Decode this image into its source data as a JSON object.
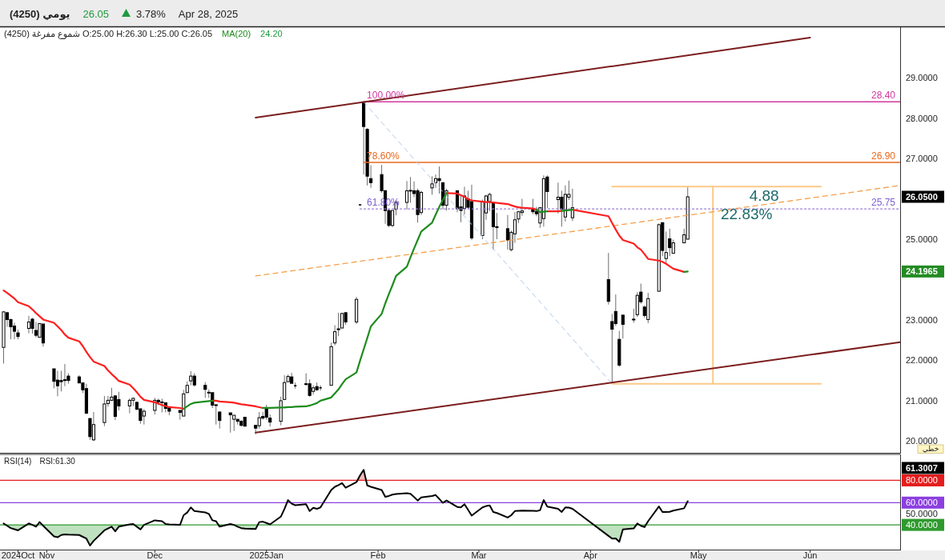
{
  "chart_data": [
    {
      "type": "candlestick",
      "title": "(4250)   يومي",
      "subtitle": "(4250)  شموع مفرغة   O:25.00   H:26.30   L:25.00   C:26.05",
      "x": [
        "2024-10-20",
        "2024-10-21",
        "2024-10-22",
        "2024-10-23",
        "2024-10-24",
        "2024-10-27",
        "2024-10-28",
        "2024-10-29",
        "2024-10-30",
        "2024-10-31",
        "2024-11-03",
        "2024-11-04",
        "2024-11-05",
        "2024-11-06",
        "2024-11-07",
        "2024-11-10",
        "2024-11-11",
        "2024-11-12",
        "2024-11-13",
        "2024-11-14",
        "2024-11-17",
        "2024-11-18",
        "2024-11-19",
        "2024-11-20",
        "2024-11-21",
        "2024-11-24",
        "2024-11-25",
        "2024-11-26",
        "2024-11-27",
        "2024-11-28",
        "2024-12-01",
        "2024-12-02",
        "2024-12-03",
        "2024-12-04",
        "2024-12-05",
        "2024-12-08",
        "2024-12-09",
        "2024-12-10",
        "2024-12-11",
        "2024-12-12",
        "2024-12-15",
        "2024-12-16",
        "2024-12-17",
        "2024-12-18",
        "2024-12-19",
        "2024-12-22",
        "2024-12-23",
        "2024-12-24",
        "2024-12-25",
        "2024-12-26",
        "2024-12-29",
        "2024-12-30",
        "2024-12-31",
        "2025-01-01",
        "2025-01-02",
        "2025-01-05",
        "2025-01-06",
        "2025-01-07",
        "2025-01-08",
        "2025-01-09",
        "2025-01-12",
        "2025-01-13",
        "2025-01-14",
        "2025-01-15",
        "2025-01-16",
        "2025-01-19",
        "2025-01-20",
        "2025-01-21",
        "2025-01-22",
        "2025-01-23",
        "2025-01-26",
        "2025-01-27",
        "2025-01-28",
        "2025-01-29",
        "2025-01-30",
        "2025-02-02",
        "2025-02-03",
        "2025-02-04",
        "2025-02-05",
        "2025-02-06",
        "2025-02-09",
        "2025-02-10",
        "2025-02-11",
        "2025-02-12",
        "2025-02-13",
        "2025-02-16",
        "2025-02-17",
        "2025-02-18",
        "2025-02-19",
        "2025-02-20",
        "2025-02-23",
        "2025-02-24",
        "2025-02-25",
        "2025-02-26",
        "2025-02-27",
        "2025-03-02",
        "2025-03-03",
        "2025-03-04",
        "2025-03-05",
        "2025-03-06",
        "2025-03-09",
        "2025-03-10",
        "2025-03-11",
        "2025-03-12",
        "2025-03-13",
        "2025-03-16",
        "2025-03-17",
        "2025-03-18",
        "2025-03-19",
        "2025-03-20",
        "2025-03-23",
        "2025-03-24",
        "2025-03-25",
        "2025-03-26",
        "2025-03-27",
        "2025-04-06",
        "2025-04-07",
        "2025-04-08",
        "2025-04-09",
        "2025-04-10",
        "2025-04-13",
        "2025-04-14",
        "2025-04-15",
        "2025-04-16",
        "2025-04-17",
        "2025-04-20",
        "2025-04-21",
        "2025-04-22",
        "2025-04-23",
        "2025-04-24",
        "2025-04-27",
        "2025-04-28"
      ],
      "ohlc": [
        [
          22.32,
          23.22,
          21.92,
          23.2
        ],
        [
          23.18,
          23.2,
          22.83,
          23.01
        ],
        [
          23.01,
          23.03,
          22.52,
          22.83
        ],
        [
          22.85,
          22.93,
          22.52,
          22.72
        ],
        [
          22.68,
          22.76,
          22.52,
          22.59
        ],
        [
          22.79,
          23.1,
          22.67,
          22.95
        ],
        [
          23.02,
          23.05,
          22.66,
          22.79
        ],
        [
          22.74,
          22.95,
          22.57,
          22.62
        ],
        [
          22.57,
          22.91,
          22.57,
          22.91
        ],
        [
          22.9,
          22.9,
          22.34,
          22.43
        ],
        [
          21.79,
          21.79,
          21.31,
          21.48
        ],
        [
          21.51,
          21.74,
          21.11,
          21.37
        ],
        [
          21.5,
          21.74,
          21.23,
          21.47
        ],
        [
          21.52,
          21.91,
          21.36,
          21.5
        ],
        [
          21.61,
          21.68,
          21.42,
          21.5
        ],
        [
          21.59,
          21.63,
          21.44,
          21.44
        ],
        [
          21.44,
          21.44,
          21.19,
          21.27
        ],
        [
          21.3,
          21.42,
          20.67,
          20.69
        ],
        [
          20.56,
          20.56,
          20.03,
          20.11
        ],
        [
          20.03,
          20.72,
          20.0,
          20.41
        ],
        [
          20.46,
          21.12,
          20.37,
          20.92
        ],
        [
          20.93,
          21.12,
          20.85,
          21.01
        ],
        [
          21.01,
          21.32,
          20.99,
          21.09
        ],
        [
          21.12,
          21.12,
          20.52,
          20.61
        ],
        [
          21.03,
          21.22,
          20.76,
          20.87
        ],
        [
          20.87,
          21.06,
          20.69,
          21.01
        ],
        [
          21.01,
          21.08,
          20.87,
          21.06
        ],
        [
          20.96,
          20.98,
          20.76,
          20.79
        ],
        [
          20.8,
          20.8,
          20.43,
          20.51
        ],
        [
          20.62,
          20.79,
          20.41,
          20.74
        ],
        [
          20.76,
          21.07,
          20.66,
          21.01
        ],
        [
          21.01,
          21.05,
          20.89,
          20.97
        ],
        [
          20.97,
          21.05,
          20.71,
          20.96
        ],
        [
          20.95,
          20.95,
          20.71,
          20.81
        ],
        [
          20.82,
          20.82,
          20.64,
          20.74
        ],
        [
          20.76,
          20.76,
          20.53,
          20.71
        ],
        [
          20.62,
          21.27,
          20.62,
          21.17
        ],
        [
          21.2,
          21.48,
          21.2,
          21.38
        ],
        [
          21.49,
          21.73,
          21.38,
          21.61
        ],
        [
          21.61,
          21.68,
          21.35,
          21.39
        ],
        [
          21.38,
          21.46,
          21.07,
          21.28
        ],
        [
          21.21,
          21.28,
          21.07,
          21.2
        ],
        [
          21.2,
          21.2,
          20.82,
          20.89
        ],
        [
          20.9,
          20.9,
          20.41,
          20.88
        ],
        [
          20.72,
          20.74,
          20.31,
          20.51
        ],
        [
          20.7,
          20.7,
          20.21,
          20.65
        ],
        [
          20.54,
          20.64,
          20.25,
          20.64
        ],
        [
          20.54,
          20.54,
          20.41,
          20.49
        ],
        [
          20.49,
          20.52,
          20.36,
          20.39
        ],
        [
          20.59,
          20.59,
          20.36,
          20.37
        ],
        [
          20.39,
          20.39,
          20.17,
          20.32
        ],
        [
          20.38,
          20.72,
          20.31,
          20.58
        ],
        [
          20.61,
          20.72,
          20.53,
          20.57
        ],
        [
          20.83,
          20.9,
          20.53,
          20.59
        ],
        [
          20.57,
          20.66,
          20.36,
          20.47
        ],
        [
          20.49,
          21.1,
          20.39,
          21.0
        ],
        [
          21.03,
          21.63,
          21.03,
          21.45
        ],
        [
          21.47,
          21.65,
          21.47,
          21.6
        ],
        [
          21.59,
          21.69,
          21.43,
          21.43
        ],
        [
          21.37,
          21.45,
          21.3,
          21.37
        ],
        [
          21.42,
          21.68,
          21.38,
          21.41
        ],
        [
          21.42,
          21.53,
          21.1,
          21.13
        ],
        [
          21.23,
          21.38,
          21.15,
          21.32
        ],
        [
          21.35,
          21.45,
          21.25,
          21.27
        ],
        [
          21.32,
          21.38,
          21.25,
          21.32
        ],
        [
          21.38,
          22.44,
          21.38,
          22.34
        ],
        [
          22.43,
          22.87,
          22.37,
          22.71
        ],
        [
          22.78,
          23.18,
          22.6,
          22.76
        ],
        [
          22.8,
          23.18,
          22.8,
          23.16
        ],
        [
          23.18,
          23.2,
          22.88,
          22.95
        ],
        [
          22.95,
          23.57,
          22.9,
          23.51
        ],
        [
          25.85,
          25.85,
          25.85,
          25.85
        ],
        [
          28.4,
          28.4,
          26.6,
          27.79
        ],
        [
          27.72,
          27.75,
          26.33,
          26.56
        ],
        [
          26.5,
          26.83,
          26.27,
          26.4
        ],
        [
          26.6,
          26.84,
          26.15,
          26.2
        ],
        [
          26.2,
          26.22,
          25.38,
          25.71
        ],
        [
          25.71,
          25.75,
          25.3,
          25.34
        ],
        [
          25.34,
          25.71,
          25.3,
          25.71
        ],
        [
          25.74,
          25.97,
          25.59,
          25.91
        ],
        [
          25.91,
          26.44,
          25.74,
          26.2
        ],
        [
          26.2,
          26.54,
          25.9,
          26.21
        ],
        [
          26.2,
          26.43,
          26.04,
          26.13
        ],
        [
          26.2,
          26.25,
          25.41,
          25.61
        ],
        [
          25.66,
          26.2,
          25.6,
          26.16
        ],
        [
          26.27,
          26.56,
          26.1,
          26.37
        ],
        [
          26.4,
          26.6,
          26.27,
          26.5
        ],
        [
          26.5,
          26.8,
          26.13,
          26.45
        ],
        [
          26.4,
          26.4,
          25.74,
          25.84
        ],
        [
          25.84,
          26.25,
          25.71,
          26.2
        ],
        [
          26.2,
          26.2,
          25.67,
          25.75
        ],
        [
          25.8,
          26.07,
          25.42,
          25.71
        ],
        [
          25.76,
          26.3,
          25.61,
          26.07
        ],
        [
          26.0,
          26.2,
          25.74,
          25.79
        ],
        [
          25.93,
          26.35,
          24.98,
          25.03
        ],
        [
          25.09,
          25.98,
          25.0,
          25.93
        ],
        [
          25.65,
          26.1,
          25.48,
          26.07
        ],
        [
          25.93,
          26.15,
          25.7,
          26.11
        ],
        [
          25.9,
          25.92,
          24.74,
          25.31
        ],
        [
          25.31,
          25.65,
          25.0,
          25.3
        ],
        [
          25.26,
          25.6,
          24.74,
          24.98
        ],
        [
          24.74,
          25.21,
          24.7,
          25.17
        ],
        [
          25.13,
          25.67,
          24.91,
          25.48
        ],
        [
          25.5,
          25.7,
          25.4,
          25.68
        ],
        [
          25.66,
          26.0,
          25.58,
          25.7
        ],
        [
          25.76,
          26.0,
          25.62,
          25.68
        ],
        [
          25.69,
          25.8,
          25.57,
          25.63
        ],
        [
          25.4,
          25.78,
          25.28,
          25.78
        ],
        [
          25.51,
          26.58,
          25.31,
          26.5
        ],
        [
          26.54,
          26.58,
          25.77,
          26.18
        ],
        [
          25.98,
          26.4,
          25.64,
          26.04
        ],
        [
          26.04,
          26.2,
          25.31,
          25.74
        ],
        [
          25.55,
          26.33,
          25.44,
          26.11
        ],
        [
          26.04,
          26.45,
          25.97,
          26.11
        ],
        [
          25.53,
          26.25,
          25.45,
          25.78
        ],
        [
          24.0,
          24.66,
          23.38,
          23.46
        ],
        [
          22.96,
          23.15,
          21.42,
          22.77
        ],
        [
          23.21,
          23.63,
          22.85,
          22.91
        ],
        [
          22.52,
          22.73,
          21.84,
          21.88
        ],
        [
          23.12,
          23.12,
          22.54,
          22.89
        ],
        [
          23.02,
          23.28,
          22.93,
          23.01
        ],
        [
          23.13,
          23.69,
          23.07,
          23.61
        ],
        [
          23.69,
          23.9,
          23.4,
          23.45
        ],
        [
          23.32,
          23.36,
          23.05,
          23.11
        ],
        [
          23.01,
          23.67,
          22.92,
          23.53
        ],
        [
          23.71,
          25.39,
          23.71,
          25.36
        ],
        [
          25.41,
          25.41,
          24.58,
          24.72
        ],
        [
          24.52,
          25.19,
          24.39,
          24.67
        ],
        [
          25.01,
          25.26,
          24.58,
          24.79
        ],
        [
          24.65,
          24.99,
          24.65,
          24.91
        ],
        [
          24.91,
          25.26,
          24.91,
          25.11
        ],
        [
          25.0,
          26.3,
          25.0,
          26.05
        ]
      ],
      "series": [
        {
          "name": "MA(20)",
          "type": "line",
          "color": "#1e8c1e",
          "values": [
            null,
            null,
            null,
            null,
            null,
            null,
            null,
            null,
            null,
            null,
            null,
            null,
            null,
            null,
            null,
            null,
            null,
            null,
            null,
            null,
            null,
            null,
            null,
            null,
            null,
            null,
            null,
            null,
            null,
            null,
            null,
            null,
            null,
            null,
            null,
            null,
            20.8,
            20.86,
            20.92,
            20.95,
            20.98,
            20.99,
            21.0,
            null,
            null,
            null,
            null,
            null,
            null,
            null,
            null,
            null,
            20.82,
            20.82,
            20.82,
            20.83,
            20.83,
            20.84,
            20.84,
            20.85,
            20.86,
            20.88,
            20.91,
            20.94,
            21.0,
            21.08,
            21.18,
            21.28,
            21.41,
            21.53,
            21.7,
            21.99,
            22.27,
            22.55,
            22.84,
            23.15,
            23.41,
            23.64,
            23.86,
            24.09,
            24.32,
            24.55,
            24.77,
            24.98,
            25.19,
            25.41,
            25.61,
            25.8,
            25.97,
            26.14,
            null,
            null,
            null,
            null,
            null,
            null,
            null,
            null,
            null,
            null,
            null,
            null,
            null,
            null,
            null,
            null,
            25.73,
            25.67,
            25.68,
            25.69,
            null,
            25.7,
            25.71,
            25.72,
            25.73,
            null,
            null,
            null,
            null,
            null,
            null,
            null,
            null,
            null,
            null,
            null,
            null,
            null,
            null,
            null,
            24.19,
            24.2
          ]
        },
        {
          "type": "line",
          "color": "#ff1f1f",
          "values": [
            23.73,
            23.67,
            23.6,
            23.53,
            23.44,
            23.34,
            23.26,
            23.17,
            23.09,
            23.01,
            22.93,
            22.84,
            22.75,
            22.64,
            22.56,
            22.47,
            22.35,
            22.21,
            22.08,
            21.97,
            21.86,
            21.75,
            21.66,
            21.58,
            21.49,
            21.4,
            21.31,
            21.21,
            21.1,
            21.02,
            20.96,
            20.93,
            20.89,
            20.87,
            20.84,
            20.82,
            20.8,
            null,
            null,
            null,
            null,
            null,
            21.0,
            21.0,
            20.98,
            20.96,
            20.95,
            20.93,
            20.91,
            20.9,
            20.86,
            20.84,
            20.82,
            null,
            null,
            null,
            null,
            null,
            null,
            null,
            null,
            null,
            null,
            null,
            null,
            null,
            null,
            null,
            null,
            null,
            null,
            null,
            null,
            null,
            null,
            null,
            null,
            null,
            null,
            null,
            null,
            null,
            null,
            null,
            null,
            null,
            null,
            null,
            null,
            26.14,
            26.13,
            26.09,
            26.05,
            25.99,
            25.96,
            25.93,
            25.92,
            25.92,
            25.91,
            25.9,
            25.87,
            25.84,
            25.81,
            25.79,
            25.78,
            25.76,
            25.73,
            null,
            null,
            25.69,
            25.69,
            25.7,
            null,
            null,
            25.73,
            25.57,
            25.4,
            25.24,
            25.09,
            24.98,
            24.89,
            24.8,
            24.74,
            24.63,
            24.51,
            24.47,
            24.44,
            24.39,
            24.33,
            24.27,
            24.19,
            null
          ]
        },
        {
          "type": "line",
          "color": "#7b1e1e",
          "x": [
            "2024-12-29",
            "2025-06-01"
          ],
          "values": [
            28.01,
            29.99
          ]
        },
        {
          "type": "line",
          "color": "#7b1e1e",
          "x": [
            "2024-12-29",
            "2025-06-26"
          ],
          "values": [
            20.21,
            22.45
          ]
        },
        {
          "type": "line",
          "color": "#f5a04a",
          "line_style": "dashed",
          "x": [
            "2024-12-29",
            "2025-06-26"
          ],
          "values": [
            24.09,
            26.33
          ]
        },
        {
          "type": "line",
          "color": "#b5c9e6",
          "line_style": "dashed",
          "x": [
            "2025-01-28",
            "2025-04-07"
          ],
          "values": [
            28.4,
            21.42
          ]
        },
        {
          "type": "line",
          "color": "#d0399f",
          "x": [
            "2025-01-28",
            "2025-06-26"
          ],
          "values": [
            28.4,
            28.4
          ]
        },
        {
          "type": "line",
          "color": "#ea6a1e",
          "x": [
            "2025-01-28",
            "2025-06-26"
          ],
          "values": [
            26.9,
            26.9
          ]
        },
        {
          "type": "line",
          "color": "#9a80d6",
          "line_style": "dotted",
          "x": [
            "2025-01-27",
            "2025-06-26"
          ],
          "values": [
            25.75,
            25.75
          ]
        },
        {
          "type": "line",
          "color": "#fcc987",
          "x": [
            "2025-04-07",
            "2025-06-04"
          ],
          "values": [
            26.3,
            26.3
          ]
        },
        {
          "type": "line",
          "color": "#fcc987",
          "x": [
            "2025-04-07",
            "2025-06-04"
          ],
          "values": [
            21.42,
            21.42
          ]
        },
        {
          "type": "line",
          "color": "#fcc987",
          "x": [
            "2025-05-05",
            "2025-05-05"
          ],
          "values": [
            26.3,
            21.42
          ]
        }
      ],
      "xlim": [
        "2024-10-19",
        "2025-06-26"
      ],
      "ylim": [
        19.71,
        30.23
      ],
      "yticks": [
        {
          "value": 20,
          "label": "20.0000"
        },
        {
          "value": 21,
          "label": "21.0000"
        },
        {
          "value": 22,
          "label": "22.0000"
        },
        {
          "value": 23,
          "label": "23.0000"
        },
        {
          "value": 25,
          "label": "25.0000"
        },
        {
          "value": 27,
          "label": "27.0000"
        },
        {
          "value": 28,
          "label": "28.0000"
        },
        {
          "value": 29,
          "label": "29.0000"
        }
      ],
      "tick_labels": "y",
      "legend": "top left",
      "annotations": [
        "26.05",
        "3.78%",
        "Apr 28, 2025",
        "24.20",
        "خطي",
        {
          "text": "100.00%",
          "x": "2025-01-28",
          "y": 28.4
        },
        {
          "text": "78.60%",
          "x": "2025-01-28",
          "y": 26.9
        },
        {
          "text": "61.80%",
          "x": "2025-01-28",
          "y": 25.75
        },
        {
          "text": "28.40",
          "x": "2025-06-26",
          "y": 28.4
        },
        {
          "text": "26.90",
          "x": "2025-06-26",
          "y": 26.9
        },
        {
          "text": "25.75",
          "x": "2025-06-26",
          "y": 25.75
        },
        "4.88",
        "22.83%",
        "26.0500",
        "24.1965"
      ]
    },
    {
      "type": "line",
      "title": "RSI(14)",
      "x": [
        "2024-10-20",
        "2024-10-21",
        "2024-10-22",
        "2024-10-23",
        "2024-10-24",
        "2024-10-27",
        "2024-10-28",
        "2024-10-29",
        "2024-10-30",
        "2024-10-31",
        "2024-11-03",
        "2024-11-04",
        "2024-11-05",
        "2024-11-06",
        "2024-11-07",
        "2024-11-10",
        "2024-11-11",
        "2024-11-12",
        "2024-11-13",
        "2024-11-14",
        "2024-11-17",
        "2024-11-18",
        "2024-11-19",
        "2024-11-20",
        "2024-11-21",
        "2024-11-24",
        "2024-11-25",
        "2024-11-26",
        "2024-11-27",
        "2024-11-28",
        "2024-12-01",
        "2024-12-02",
        "2024-12-03",
        "2024-12-04",
        "2024-12-05",
        "2024-12-08",
        "2024-12-09",
        "2024-12-10",
        "2024-12-11",
        "2024-12-12",
        "2024-12-15",
        "2024-12-16",
        "2024-12-17",
        "2024-12-18",
        "2024-12-19",
        "2024-12-22",
        "2024-12-23",
        "2024-12-24",
        "2024-12-25",
        "2024-12-26",
        "2024-12-29",
        "2024-12-30",
        "2024-12-31",
        "2025-01-01",
        "2025-01-02",
        "2025-01-05",
        "2025-01-06",
        "2025-01-07",
        "2025-01-08",
        "2025-01-09",
        "2025-01-12",
        "2025-01-13",
        "2025-01-14",
        "2025-01-15",
        "2025-01-16",
        "2025-01-19",
        "2025-01-20",
        "2025-01-21",
        "2025-01-22",
        "2025-01-23",
        "2025-01-26",
        "2025-01-27",
        "2025-01-28",
        "2025-01-29",
        "2025-01-30",
        "2025-02-02",
        "2025-02-03",
        "2025-02-04",
        "2025-02-05",
        "2025-02-06",
        "2025-02-09",
        "2025-02-10",
        "2025-02-11",
        "2025-02-12",
        "2025-02-13",
        "2025-02-16",
        "2025-02-17",
        "2025-02-18",
        "2025-02-19",
        "2025-02-20",
        "2025-02-23",
        "2025-02-24",
        "2025-02-25",
        "2025-02-26",
        "2025-02-27",
        "2025-03-02",
        "2025-03-03",
        "2025-03-04",
        "2025-03-05",
        "2025-03-06",
        "2025-03-09",
        "2025-03-10",
        "2025-03-11",
        "2025-03-12",
        "2025-03-13",
        "2025-03-16",
        "2025-03-17",
        "2025-03-18",
        "2025-03-19",
        "2025-03-20",
        "2025-03-23",
        "2025-03-24",
        "2025-03-25",
        "2025-03-26",
        "2025-03-27",
        "2025-04-06",
        "2025-04-07",
        "2025-04-08",
        "2025-04-09",
        "2025-04-10",
        "2025-04-13",
        "2025-04-14",
        "2025-04-15",
        "2025-04-16",
        "2025-04-17",
        "2025-04-20",
        "2025-04-21",
        "2025-04-22",
        "2025-04-23",
        "2025-04-24",
        "2025-04-27",
        "2025-04-28"
      ],
      "series": [
        {
          "color": "#000000",
          "values": [
            41.3,
            39.2,
            37.1,
            36.1,
            35.1,
            41.3,
            40.0,
            38.4,
            42.5,
            39.2,
            29.7,
            28.9,
            30.9,
            31.4,
            31.2,
            30.9,
            29.3,
            27.7,
            21.5,
            25.6,
            35.1,
            36.8,
            38.4,
            34.2,
            38.4,
            40.4,
            40.8,
            38.4,
            35.9,
            40.0,
            44.1,
            43.7,
            43.3,
            40.8,
            40.4,
            40.0,
            48.7,
            51.1,
            55.7,
            52.4,
            51.2,
            49.9,
            44.1,
            43.3,
            38.4,
            40.8,
            40.0,
            38.4,
            37.1,
            36.7,
            36.3,
            42.5,
            42.9,
            41.7,
            40.4,
            47.4,
            54.4,
            62.3,
            59.0,
            57.7,
            58.6,
            52.4,
            55.3,
            54.4,
            55.7,
            71.3,
            74.2,
            75.8,
            77.5,
            73.4,
            78.4,
            84.5,
            89.5,
            75.5,
            74.2,
            71.3,
            65.2,
            66.0,
            67.2,
            67.8,
            68.5,
            68.0,
            65.0,
            61.9,
            64.7,
            66.0,
            66.8,
            63.3,
            59.8,
            61.9,
            56.1,
            55.7,
            58.6,
            53.5,
            48.3,
            55.7,
            56.9,
            57.5,
            51.6,
            50.7,
            46.6,
            48.7,
            52.4,
            52.6,
            52.8,
            52.6,
            52.4,
            53.2,
            62.3,
            56.5,
            54.4,
            51.6,
            55.7,
            55.5,
            54.4,
            30.1,
            27.7,
            27.9,
            24.8,
            35.9,
            36.8,
            41.3,
            39.2,
            38.0,
            43.3,
            56.5,
            51.6,
            51.6,
            51.8,
            52.8,
            54.9,
            61.3
          ]
        }
      ],
      "xlim": [
        "2024-10-19",
        "2025-06-26"
      ],
      "xticks": [
        {
          "value": "2024-10-24",
          "label": "2024Oct"
        },
        {
          "value": "2024-11-01",
          "label": "Nov"
        },
        {
          "value": "2024-12-01",
          "label": "Dec"
        },
        {
          "value": "2025-01-01",
          "label": "2025Jan"
        },
        {
          "value": "2025-02-01",
          "label": "Feb"
        },
        {
          "value": "2025-03-01",
          "label": "Mar"
        },
        {
          "value": "2025-04-01",
          "label": "Apr"
        },
        {
          "value": "2025-05-01",
          "label": "May"
        },
        {
          "value": "2025-06-01",
          "label": "Jun"
        }
      ],
      "ylim": [
        17.8,
        102.6
      ],
      "yticks": [
        {
          "value": 80,
          "label": "80.0000"
        },
        {
          "value": 60,
          "label": "60.0000"
        },
        {
          "value": 50,
          "label": "50.0000"
        },
        {
          "value": 40,
          "label": "40.0000"
        }
      ],
      "ref_lines": [
        {
          "axis": "y",
          "value": 80,
          "color": "#e51c1c"
        },
        {
          "axis": "y",
          "value": 60,
          "color": "#8b3fe0"
        },
        {
          "axis": "y",
          "value": 40,
          "color": "#2e9a2e"
        }
      ],
      "annotations": [
        "RSI:61.30",
        "61.3007"
      ]
    }
  ]
}
